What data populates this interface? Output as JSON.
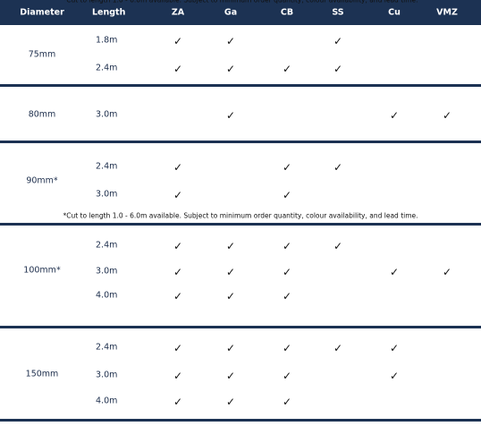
{
  "header": [
    "Diameter",
    "Length",
    "ZA",
    "Ga",
    "CB",
    "SS",
    "Cu",
    "VMZ"
  ],
  "groups": [
    {
      "diameter": "75mm",
      "rows": [
        [
          "1.8m",
          "✓",
          "✓",
          null,
          "✓",
          null,
          null
        ],
        [
          "2.4m",
          "✓",
          "✓",
          "✓",
          "✓",
          null,
          null
        ]
      ]
    },
    {
      "diameter": "80mm",
      "rows": [
        [
          "3.0m",
          null,
          "✓",
          null,
          null,
          "✓",
          "✓"
        ]
      ]
    },
    {
      "diameter": "90mm*",
      "rows": [
        [
          "2.4m",
          "✓",
          null,
          "✓",
          "✓",
          null,
          null
        ],
        [
          "3.0m",
          "✓",
          null,
          "✓",
          null,
          null,
          null
        ]
      ],
      "note": "*Cut to length 1.0 - 6.0m available. Subject to minimum order quantity, colour availability, and lead time."
    },
    {
      "diameter": "100mm*",
      "rows": [
        [
          "2.4m",
          "✓",
          "✓",
          "✓",
          "✓",
          null,
          null
        ],
        [
          "3.0m",
          "✓",
          "✓",
          "✓",
          null,
          "✓",
          "✓"
        ],
        [
          "4.0m",
          "✓",
          "✓",
          "✓",
          null,
          null,
          null
        ]
      ],
      "note": "*Cut to length 1.0 - 6.0m available. Subject to minimum order quantity, colour availability, and lead time."
    },
    {
      "diameter": "150mm",
      "rows": [
        [
          "2.4m",
          "✓",
          "✓",
          "✓",
          "✓",
          "✓",
          null
        ],
        [
          "3.0m",
          "✓",
          "✓",
          "✓",
          null,
          "✓",
          null
        ],
        [
          "4.0m",
          "✓",
          "✓",
          "✓",
          null,
          null,
          null
        ]
      ]
    }
  ]
}
